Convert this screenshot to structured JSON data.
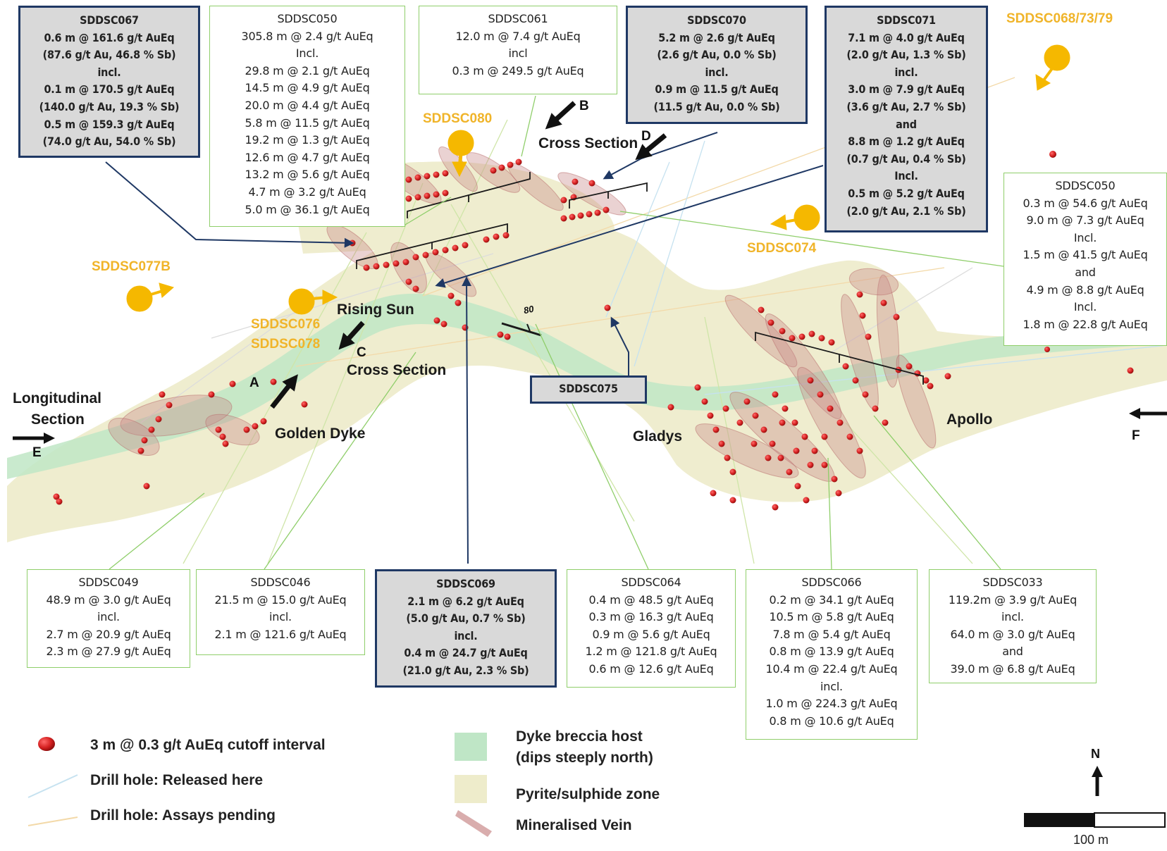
{
  "boxes": {
    "sddsc067": {
      "lines": [
        "SDDSC067",
        "0.6 m @ 161.6 g/t AuEq",
        "(87.6 g/t Au, 46.8 % Sb)",
        "incl.",
        "0.1 m @ 170.5 g/t AuEq",
        "(140.0 g/t Au, 19.3 % Sb)",
        "0.5 m @ 159.3 g/t AuEq",
        "(74.0 g/t Au, 54.0 % Sb)"
      ]
    },
    "sddsc050a": {
      "lines": [
        "SDDSC050",
        "305.8 m @ 2.4 g/t AuEq",
        "Incl.",
        "29.8 m @ 2.1 g/t AuEq",
        "14.5 m @ 4.9 g/t AuEq",
        "20.0 m @ 4.4 g/t AuEq",
        "5.8 m @ 11.5 g/t AuEq",
        "19.2 m @ 1.3 g/t AuEq",
        "12.6 m @ 4.7 g/t AuEq",
        "13.2 m @ 5.6 g/t AuEq",
        "4.7 m @ 3.2 g/t AuEq",
        "5.0 m @ 36.1 g/t AuEq"
      ]
    },
    "sddsc061": {
      "lines": [
        "SDDSC061",
        "12.0 m @ 7.4 g/t AuEq",
        "incl",
        "0.3 m @ 249.5 g/t AuEq"
      ]
    },
    "sddsc070": {
      "lines": [
        "SDDSC070",
        "5.2 m @ 2.6 g/t AuEq",
        "(2.6 g/t Au, 0.0 % Sb)",
        "incl.",
        "0.9 m @ 11.5 g/t AuEq",
        "(11.5 g/t Au, 0.0 % Sb)"
      ]
    },
    "sddsc071": {
      "lines": [
        "SDDSC071",
        "7.1 m @ 4.0 g/t AuEq",
        "(2.0 g/t Au, 1.3 % Sb)",
        "incl.",
        "3.0 m @ 7.9 g/t AuEq",
        "(3.6 g/t Au, 2.7 % Sb)",
        "and",
        "8.8 m @ 1.2 g/t AuEq",
        "(0.7 g/t Au, 0.4 % Sb)",
        "Incl.",
        "0.5 m @ 5.2 g/t AuEq",
        "(2.0 g/t Au, 2.1 % Sb)"
      ]
    },
    "sddsc050b": {
      "lines": [
        "SDDSC050",
        "0.3 m @ 54.6 g/t AuEq",
        "9.0 m @ 7.3 g/t AuEq",
        "Incl.",
        "1.5 m @ 41.5 g/t AuEq",
        "and",
        "4.9 m @ 8.8 g/t AuEq",
        "Incl.",
        "1.8 m @ 22.8 g/t AuEq"
      ]
    },
    "sddsc075": {
      "lines": [
        "SDDSC075"
      ]
    },
    "sddsc049": {
      "lines": [
        "SDDSC049",
        "48.9 m @ 3.0 g/t AuEq",
        "incl.",
        "2.7 m @ 20.9 g/t AuEq",
        "2.3 m @ 27.9 g/t AuEq"
      ]
    },
    "sddsc046": {
      "lines": [
        "SDDSC046",
        "21.5 m @ 15.0 g/t AuEq",
        "incl.",
        "2.1 m @ 121.6 g/t AuEq"
      ]
    },
    "sddsc069": {
      "lines": [
        "SDDSC069",
        "2.1 m @ 6.2 g/t AuEq",
        "(5.0 g/t Au, 0.7 % Sb)",
        "incl.",
        "0.4 m @ 24.7 g/t AuEq",
        "(21.0 g/t Au, 2.3 % Sb)"
      ]
    },
    "sddsc064": {
      "lines": [
        "SDDSC064",
        "0.4 m @ 48.5 g/t AuEq",
        "0.3 m @ 16.3 g/t AuEq",
        "0.9 m @ 5.6 g/t AuEq",
        "1.2 m @ 121.8 g/t AuEq",
        "0.6 m @ 12.6 g/t AuEq"
      ]
    },
    "sddsc066": {
      "lines": [
        "SDDSC066",
        "0.2 m @ 34.1 g/t AuEq",
        "10.5 m @ 5.8 g/t AuEq",
        "7.8 m @ 5.4 g/t AuEq",
        "0.8 m @ 13.9 g/t AuEq",
        "10.4 m @ 22.4 g/t AuEq",
        "incl.",
        "1.0 m @ 224.3 g/t AuEq",
        "0.8 m @ 10.6 g/t AuEq"
      ]
    },
    "sddsc033": {
      "lines": [
        "SDDSC033",
        "119.2m @ 3.9 g/t AuEq",
        "incl.",
        "64.0 m @ 3.0 g/t AuEq",
        "and",
        "39.0 m @ 6.8 g/t AuEq"
      ]
    }
  },
  "labels": {
    "rising_sun": "Rising Sun",
    "golden_dyke": "Golden Dyke",
    "gladys": "Gladys",
    "apollo": "Apollo",
    "cross_section_b": "Cross Section",
    "cross_section_c": "Cross Section",
    "longitudinal": "Longitudinal",
    "section": "Section",
    "letter_a": "A",
    "letter_b": "B",
    "letter_c": "C",
    "letter_d": "D",
    "letter_e": "E",
    "letter_f": "F",
    "dip": "80"
  },
  "pending_holes": {
    "sddsc080": "SDDSC080",
    "sddsc068": "SDDSC068/73/79",
    "sddsc074": "SDDSC074",
    "sddsc077b": "SDDSC077B",
    "sddsc076": "SDDSC076",
    "sddsc078": "SDDSC078"
  },
  "legend": {
    "cutoff": "3 m @ 0.3 g/t AuEq cutoff interval",
    "released": "Drill hole: Released here",
    "pending": "Drill hole: Assays pending",
    "dyke_line1": "Dyke breccia host",
    "dyke_line2": "(dips steeply north)",
    "pyrite": "Pyrite/sulphide zone",
    "vein": "Mineralised Vein"
  },
  "north": "N",
  "scale": "100 m",
  "colors": {
    "released_border": "#8fce6a",
    "new_border": "#1f3864",
    "new_fill": "#d9d9d9",
    "pending_gold": "#f0b429",
    "pyrite": "#eeeccb",
    "dyke": "#bfe6c6",
    "vein": "#c98a8a",
    "intercept": "#d42020"
  }
}
